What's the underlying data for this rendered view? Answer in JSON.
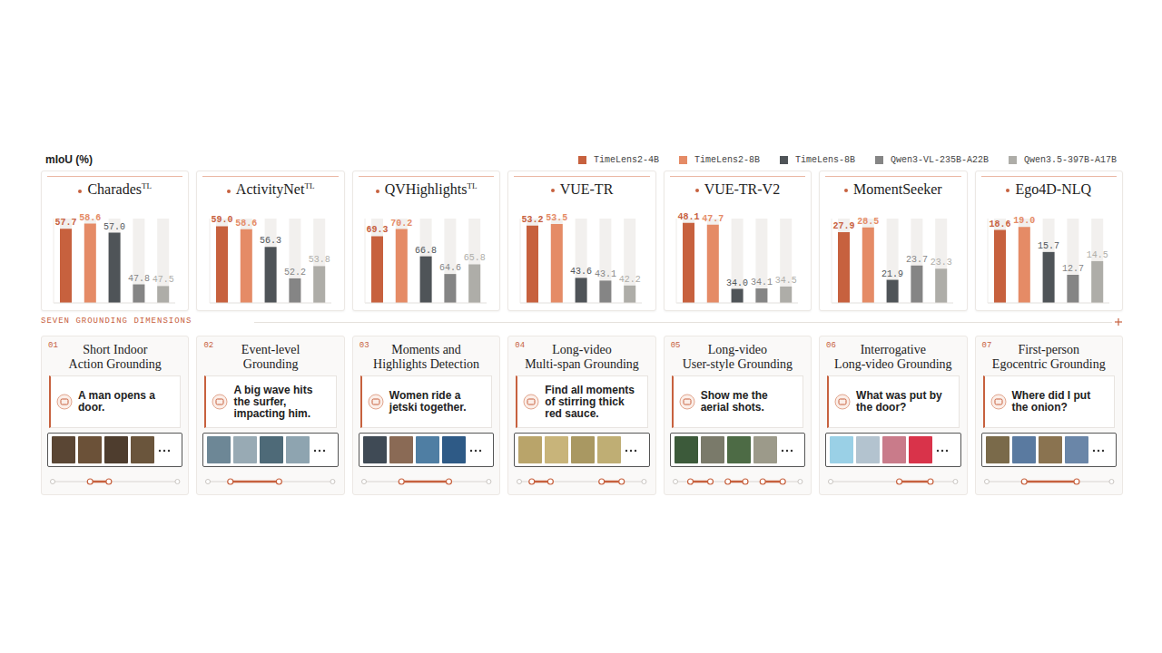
{
  "y_label": "mIoU (%)",
  "legend": "top right",
  "chart_data": [
    {
      "type": "bar",
      "title": "Charades",
      "title_superscript": "TL",
      "categories": [
        "TimeLens2-4B",
        "TimeLens2-8B",
        "TimeLens-8B",
        "Qwen3-VL-235B-A22B",
        "Qwen3.5-397B-A17B"
      ],
      "colors": [
        "#c7613e",
        "#e58b66",
        "#4f5458",
        "#858585",
        "#aeada8"
      ],
      "values": [
        57.7,
        58.6,
        57.0,
        47.8,
        47.5
      ],
      "value_labels": [
        "57.7",
        "58.6",
        "57.0",
        "47.8",
        "47.5"
      ],
      "ylim": [
        44.5,
        59.5
      ],
      "tick_labels": false,
      "data_labels": true
    },
    {
      "type": "bar",
      "title": "ActivityNet",
      "title_superscript": "TL",
      "categories": [
        "TimeLens2-4B",
        "TimeLens2-8B",
        "TimeLens-8B",
        "Qwen3-VL-235B-A22B",
        "Qwen3.5-397B-A17B"
      ],
      "colors": [
        "#c7613e",
        "#e58b66",
        "#4f5458",
        "#858585",
        "#aeada8"
      ],
      "values": [
        59.0,
        58.6,
        56.3,
        52.2,
        53.8
      ],
      "value_labels": [
        "59.0",
        "58.6",
        "56.3",
        "52.2",
        "53.8"
      ],
      "ylim": [
        49,
        60
      ],
      "tick_labels": false,
      "data_labels": true
    },
    {
      "type": "bar",
      "title": "QVHighlights",
      "title_superscript": "TL",
      "categories": [
        "TimeLens2-4B",
        "TimeLens2-8B",
        "TimeLens-8B",
        "Qwen3-VL-235B-A22B",
        "Qwen3.5-397B-A17B"
      ],
      "colors": [
        "#c7613e",
        "#e58b66",
        "#4f5458",
        "#858585",
        "#aeada8"
      ],
      "values": [
        69.3,
        70.2,
        66.8,
        64.6,
        65.8
      ],
      "value_labels": [
        "69.3",
        "70.2",
        "66.8",
        "64.6",
        "65.8"
      ],
      "ylim": [
        61,
        71.5
      ],
      "tick_labels": false,
      "data_labels": true
    },
    {
      "type": "bar",
      "title": "VUE-TR",
      "categories": [
        "TimeLens2-4B",
        "TimeLens2-8B",
        "TimeLens-8B",
        "Qwen3-VL-235B-A22B",
        "Qwen3.5-397B-A17B"
      ],
      "colors": [
        "#c7613e",
        "#e58b66",
        "#4f5458",
        "#858585",
        "#aeada8"
      ],
      "values": [
        53.2,
        53.5,
        43.6,
        43.1,
        42.2
      ],
      "value_labels": [
        "53.2",
        "53.5",
        "43.6",
        "43.1",
        "42.2"
      ],
      "ylim": [
        39,
        54.5
      ],
      "tick_labels": false,
      "data_labels": true
    },
    {
      "type": "bar",
      "title": "VUE-TR-V2",
      "categories": [
        "TimeLens2-4B",
        "TimeLens2-8B",
        "TimeLens-8B",
        "Qwen3-VL-235B-A22B",
        "Qwen3.5-397B-A17B"
      ],
      "colors": [
        "#c7613e",
        "#e58b66",
        "#4f5458",
        "#858585",
        "#aeada8"
      ],
      "values": [
        48.1,
        47.7,
        34.0,
        34.1,
        34.5
      ],
      "value_labels": [
        "48.1",
        "47.7",
        "34.0",
        "34.1",
        "34.5"
      ],
      "ylim": [
        31,
        49
      ],
      "tick_labels": false,
      "data_labels": true
    },
    {
      "type": "bar",
      "title": "MomentSeeker",
      "categories": [
        "TimeLens2-4B",
        "TimeLens2-8B",
        "TimeLens-8B",
        "Qwen3-VL-235B-A22B",
        "Qwen3.5-397B-A17B"
      ],
      "colors": [
        "#c7613e",
        "#e58b66",
        "#4f5458",
        "#858585",
        "#aeada8"
      ],
      "values": [
        27.9,
        28.5,
        21.9,
        23.7,
        23.3
      ],
      "value_labels": [
        "27.9",
        "28.5",
        "21.9",
        "23.7",
        "23.3"
      ],
      "ylim": [
        19,
        29.6
      ],
      "tick_labels": false,
      "data_labels": true
    },
    {
      "type": "bar",
      "title": "Ego4D-NLQ",
      "categories": [
        "TimeLens2-4B",
        "TimeLens2-8B",
        "TimeLens-8B",
        "Qwen3-VL-235B-A22B",
        "Qwen3.5-397B-A17B"
      ],
      "colors": [
        "#c7613e",
        "#e58b66",
        "#4f5458",
        "#858585",
        "#aeada8"
      ],
      "values": [
        18.6,
        19.0,
        15.7,
        12.7,
        14.5
      ],
      "value_labels": [
        "18.6",
        "19.0",
        "15.7",
        "12.7",
        "14.5"
      ],
      "ylim": [
        9,
        20.1
      ],
      "tick_labels": false,
      "data_labels": true
    }
  ],
  "section_title": "SEVEN GROUNDING DIMENSIONS",
  "dimensions": [
    {
      "number": "01",
      "title": "Short Indoor Action Grounding",
      "query": "A man opens a door."
    },
    {
      "number": "02",
      "title": "Event-level Grounding",
      "query": "A big wave hits the surfer, impacting him."
    },
    {
      "number": "03",
      "title": "Moments and Highlights Detection",
      "query": "Women ride a jetski together."
    },
    {
      "number": "04",
      "title": "Long-video Multi-span Grounding",
      "query": "Find all moments of stirring thick red sauce."
    },
    {
      "number": "05",
      "title": "Long-video User-style Grounding",
      "query": "Show me the aerial shots."
    },
    {
      "number": "06",
      "title": "Interrogative Long-video Grounding",
      "query": "What was put by the door?"
    },
    {
      "number": "07",
      "title": "First-person Egocentric Grounding",
      "query": "Where did I put the onion?"
    }
  ]
}
